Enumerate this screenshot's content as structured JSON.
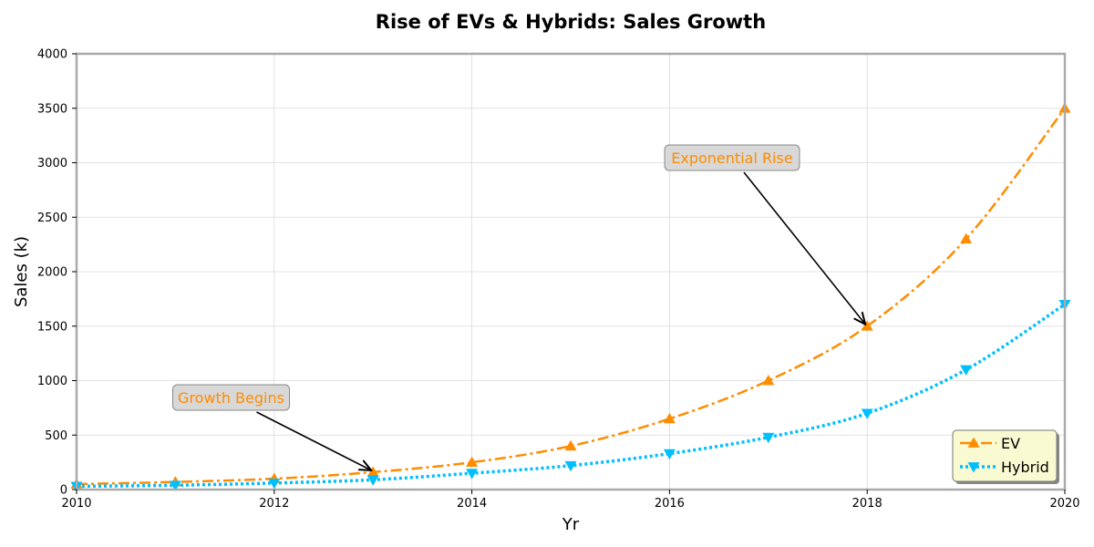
{
  "chart_data": {
    "type": "line",
    "title": "Rise of EVs & Hybrids: Sales Growth",
    "xlabel": "Yr",
    "ylabel": "Sales (k)",
    "x": [
      2010,
      2011,
      2012,
      2013,
      2014,
      2015,
      2016,
      2017,
      2018,
      2019,
      2020
    ],
    "xlim": [
      2010,
      2020
    ],
    "ylim": [
      0,
      4000
    ],
    "x_ticks": [
      2010,
      2012,
      2014,
      2016,
      2018,
      2020
    ],
    "y_ticks": [
      0,
      500,
      1000,
      1500,
      2000,
      2500,
      3000,
      3500,
      4000
    ],
    "grid": true,
    "legend_position": "bottom-right",
    "series": [
      {
        "name": "EV",
        "color": "#ff8c00",
        "line_style": "dash-dot",
        "marker": "triangle-up",
        "values": [
          50,
          70,
          100,
          160,
          250,
          400,
          650,
          1000,
          1500,
          2300,
          3500
        ]
      },
      {
        "name": "Hybrid",
        "color": "#00bfff",
        "line_style": "dotted",
        "marker": "triangle-down",
        "values": [
          30,
          40,
          60,
          90,
          150,
          220,
          330,
          480,
          700,
          1100,
          1700
        ]
      }
    ],
    "annotations": [
      {
        "text": "Growth Begins",
        "target_x": 2013,
        "target_y": 160,
        "text_color": "#ff8c00"
      },
      {
        "text": "Exponential Rise",
        "target_x": 2018,
        "target_y": 1500,
        "text_color": "#ff8c00"
      }
    ]
  }
}
